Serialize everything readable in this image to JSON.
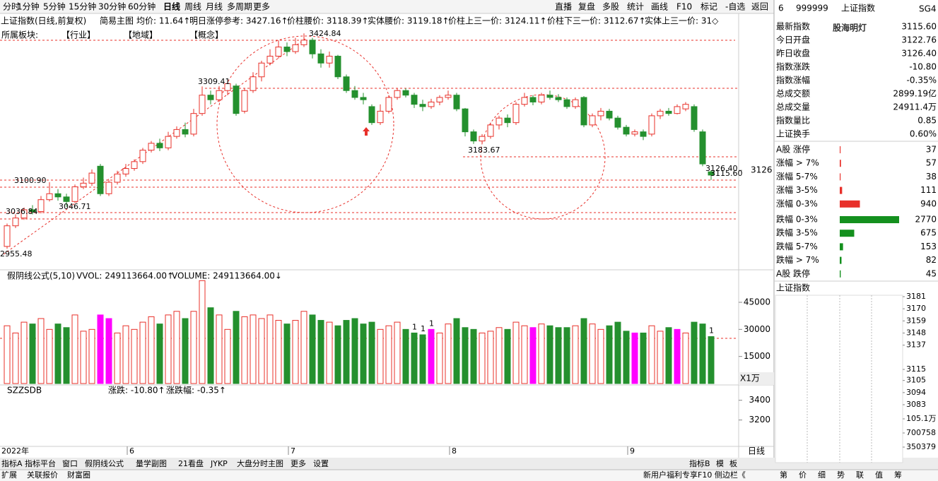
{
  "toolbar": {
    "periods": [
      "分时",
      "1分钟",
      "5分钟",
      "15分钟",
      "30分钟",
      "60分钟",
      "日线",
      "周线",
      "月线",
      "多周期",
      "更多"
    ],
    "active": 6,
    "tools": [
      "直播",
      "复盘",
      "多股",
      "统计",
      "画线",
      "F10",
      "标记",
      "-自选",
      "返回"
    ]
  },
  "info": {
    "title": "上证指数(日线,前复权)",
    "mode": "简易主图",
    "items": [
      "均价: 11.64↑",
      "明日涨停参考: 3427.16↑",
      "价柱腰价: 3118.39↑",
      "实体腰价: 3119.18↑",
      "价柱上三一价: 3124.11↑",
      "价柱下三一价: 3112.67↑",
      "实体上三一价: 31◇"
    ]
  },
  "sector": [
    "所属板块:",
    "【行业】",
    "【地域】",
    "【概念】"
  ],
  "chart_data": [
    {
      "type": "candlestick",
      "up_color": "#e8302a",
      "down_color": "#24902e",
      "ylim": [
        2909,
        3439
      ],
      "yticks": [
        3126
      ],
      "candles": [
        [
          2960,
          3005,
          3010,
          2955
        ],
        [
          3005,
          3022,
          3030,
          3000
        ],
        [
          3022,
          3040,
          3045,
          3018
        ],
        [
          3040,
          3036,
          3050,
          3030
        ],
        [
          3036,
          3062,
          3070,
          3032
        ],
        [
          3062,
          3075,
          3100,
          3058
        ],
        [
          3075,
          3068,
          3085,
          3060
        ],
        [
          3068,
          3058,
          3075,
          3046
        ],
        [
          3058,
          3090,
          3095,
          3055
        ],
        [
          3090,
          3098,
          3110,
          3085
        ],
        [
          3098,
          3120,
          3128,
          3092
        ],
        [
          3135,
          3075,
          3140,
          3070
        ],
        [
          3075,
          3100,
          3105,
          3070
        ],
        [
          3100,
          3118,
          3125,
          3095
        ],
        [
          3118,
          3130,
          3140,
          3112
        ],
        [
          3130,
          3145,
          3150,
          3125
        ],
        [
          3145,
          3170,
          3175,
          3140
        ],
        [
          3170,
          3185,
          3190,
          3165
        ],
        [
          3185,
          3175,
          3195,
          3168
        ],
        [
          3175,
          3200,
          3210,
          3170
        ],
        [
          3200,
          3215,
          3222,
          3195
        ],
        [
          3215,
          3205,
          3230,
          3198
        ],
        [
          3205,
          3250,
          3260,
          3200
        ],
        [
          3250,
          3290,
          3309,
          3245
        ],
        [
          3290,
          3280,
          3300,
          3270
        ],
        [
          3280,
          3300,
          3310,
          3275
        ],
        [
          3300,
          3315,
          3320,
          3290
        ],
        [
          3310,
          3250,
          3315,
          3245
        ],
        [
          3255,
          3300,
          3305,
          3250
        ],
        [
          3300,
          3330,
          3340,
          3295
        ],
        [
          3330,
          3360,
          3365,
          3320
        ],
        [
          3360,
          3375,
          3390,
          3355
        ],
        [
          3375,
          3395,
          3410,
          3370
        ],
        [
          3395,
          3385,
          3405,
          3375
        ],
        [
          3385,
          3400,
          3415,
          3380
        ],
        [
          3400,
          3410,
          3424.84,
          3395
        ],
        [
          3410,
          3380,
          3415,
          3370
        ],
        [
          3380,
          3360,
          3390,
          3350
        ],
        [
          3360,
          3375,
          3385,
          3350
        ],
        [
          3375,
          3330,
          3378,
          3325
        ],
        [
          3330,
          3300,
          3335,
          3295
        ],
        [
          3300,
          3285,
          3310,
          3280
        ],
        [
          3285,
          3280,
          3295,
          3270
        ],
        [
          3265,
          3230,
          3270,
          3225
        ],
        [
          3230,
          3255,
          3270,
          3225
        ],
        [
          3255,
          3285,
          3290,
          3250
        ],
        [
          3285,
          3300,
          3305,
          3280
        ],
        [
          3300,
          3290,
          3305,
          3285
        ],
        [
          3290,
          3270,
          3295,
          3262
        ],
        [
          3270,
          3265,
          3280,
          3255
        ],
        [
          3265,
          3275,
          3282,
          3260
        ],
        [
          3275,
          3285,
          3290,
          3268
        ],
        [
          3285,
          3290,
          3300,
          3280
        ],
        [
          3290,
          3260,
          3295,
          3255
        ],
        [
          3260,
          3210,
          3262,
          3200
        ],
        [
          3210,
          3190,
          3215,
          3183.67
        ],
        [
          3190,
          3200,
          3205,
          3185
        ],
        [
          3200,
          3225,
          3230,
          3195
        ],
        [
          3225,
          3240,
          3245,
          3215
        ],
        [
          3240,
          3230,
          3248,
          3220
        ],
        [
          3230,
          3270,
          3275,
          3225
        ],
        [
          3270,
          3285,
          3295,
          3265
        ],
        [
          3285,
          3275,
          3290,
          3268
        ],
        [
          3275,
          3290,
          3295,
          3270
        ],
        [
          3290,
          3285,
          3300,
          3280
        ],
        [
          3285,
          3280,
          3292,
          3275
        ],
        [
          3280,
          3265,
          3285,
          3260
        ],
        [
          3265,
          3280,
          3285,
          3260
        ],
        [
          3285,
          3225,
          3288,
          3220
        ],
        [
          3225,
          3245,
          3250,
          3220
        ],
        [
          3245,
          3255,
          3262,
          3235
        ],
        [
          3255,
          3240,
          3260,
          3235
        ],
        [
          3240,
          3220,
          3245,
          3215
        ],
        [
          3220,
          3205,
          3225,
          3200
        ],
        [
          3205,
          3210,
          3215,
          3200
        ],
        [
          3210,
          3200,
          3215,
          3192
        ],
        [
          3205,
          3245,
          3250,
          3200
        ],
        [
          3245,
          3255,
          3260,
          3238
        ],
        [
          3255,
          3250,
          3262,
          3245
        ],
        [
          3250,
          3265,
          3270,
          3248
        ],
        [
          3260,
          3270,
          3275,
          3255
        ],
        [
          3265,
          3215,
          3270,
          3210
        ],
        [
          3210,
          3140,
          3215,
          3135
        ],
        [
          3122.76,
          3115.6,
          3126.4,
          3105
        ]
      ],
      "annotations": [
        "3424.84",
        "3309.41",
        "3183.67",
        "3100.90",
        "3046.71",
        "3036.84",
        "2955.48",
        "3126.40",
        "3115.60"
      ],
      "x_labels": [
        "2022年",
        "6",
        "7",
        "8",
        "9"
      ],
      "period_label": "日线"
    },
    {
      "type": "bar",
      "title": "假阴线公式(5,10)",
      "vvol": "VVOL: 249113664.00↑",
      "volume": "VOLUME: 249113664.00↓",
      "unit": "X1万",
      "ylim": [
        0,
        63000
      ],
      "yticks": [
        15000,
        30000,
        45000
      ],
      "highlight": [
        11,
        12,
        50,
        62,
        74,
        79
      ],
      "highlight_color": "#ff00ff",
      "markers": [
        "1",
        "1",
        "1",
        "1"
      ],
      "values": [
        32000,
        28000,
        34000,
        33000,
        36000,
        30000,
        33000,
        31000,
        38000,
        29000,
        30000,
        38000,
        36000,
        28000,
        32000,
        30000,
        34000,
        37000,
        33000,
        38000,
        40000,
        36000,
        40000,
        57000,
        42000,
        38000,
        30000,
        40000,
        37000,
        38000,
        36000,
        38000,
        35000,
        33000,
        35000,
        40000,
        38000,
        35000,
        34000,
        32000,
        35000,
        36000,
        33000,
        34000,
        30000,
        32000,
        34000,
        30000,
        28000,
        27000,
        30000,
        28000,
        33000,
        36000,
        31000,
        30000,
        28000,
        29000,
        31000,
        30000,
        34000,
        32000,
        31000,
        33000,
        32000,
        31000,
        31000,
        32000,
        36000,
        33000,
        30000,
        32000,
        34000,
        29000,
        28000,
        28000,
        32000,
        29000,
        31000,
        30000,
        28000,
        34000,
        33000,
        26000
      ]
    }
  ],
  "indicator": {
    "title": "SZZSDB",
    "items": [
      "涨跌: -10.80↑",
      "涨跌幅: -0.35↑"
    ],
    "ylim": [
      2933,
      3555
    ],
    "yticks": [
      3400,
      3200
    ]
  },
  "quote": {
    "badge": "6",
    "code": "999999",
    "name": "上证指数",
    "tag": "SG4",
    "watermark": "股海明灯",
    "rows": [
      {
        "label": "最新指数",
        "value": "3115.60",
        "color": "#14901e"
      },
      {
        "label": "今日开盘",
        "value": "3122.76",
        "color": "#14901e"
      },
      {
        "label": "昨日收盘",
        "value": "3126.40",
        "color": "#000"
      },
      {
        "label": "指数涨跌",
        "value": "-10.80",
        "color": "#14901e"
      },
      {
        "label": "指数涨幅",
        "value": "-0.35%",
        "color": "#14901e"
      },
      {
        "label": "总成交额",
        "value": "2899.19亿",
        "color": "#000"
      },
      {
        "label": "总成交量",
        "value": "24911.4万",
        "color": "#000"
      },
      {
        "label": "指数量比",
        "value": "0.85",
        "color": "#000"
      },
      {
        "label": "上证换手",
        "value": "0.60%",
        "color": "#000"
      }
    ]
  },
  "breadth": {
    "max_bar": 2770,
    "rows": [
      {
        "label": "A股 涨停",
        "value": 37,
        "color": "#e8302a"
      },
      {
        "label": "涨幅 > 7%",
        "value": 57,
        "color": "#e8302a"
      },
      {
        "label": "涨幅 5-7%",
        "value": 38,
        "color": "#e8302a"
      },
      {
        "label": "涨幅 3-5%",
        "value": 111,
        "color": "#e8302a"
      },
      {
        "label": "涨幅 0-3%",
        "value": 940,
        "color": "#e8302a"
      },
      {
        "label": "跌幅 0-3%",
        "value": 2770,
        "color": "#14901e"
      },
      {
        "label": "跌幅 3-5%",
        "value": 675,
        "color": "#14901e"
      },
      {
        "label": "跌幅 5-7%",
        "value": 153,
        "color": "#14901e"
      },
      {
        "label": "跌幅 > 7%",
        "value": 82,
        "color": "#14901e"
      },
      {
        "label": "A股 跌停",
        "value": 45,
        "color": "#14901e"
      }
    ]
  },
  "intraday": {
    "title": "上证指数",
    "ylim": [
      3083,
      3181
    ],
    "yticks": [
      3181,
      3170,
      3159,
      3148,
      3137,
      3115,
      3105,
      3094,
      3083
    ],
    "vlim": [
      0,
      1051000
    ],
    "vticks": [
      {
        "value": 1051000,
        "label": "105.1万"
      },
      700758,
      350379
    ]
  },
  "tabs": [
    "指标A",
    "指标平台",
    "窗口",
    "假阴线公式",
    "量学副图",
    "21看盘",
    "JYKP",
    "大盘分时主图",
    "更多",
    "设置"
  ],
  "tabs_right": [
    "指标B",
    "模",
    "板"
  ],
  "status": {
    "left": [
      "扩展",
      "关联报价",
      "财富圈"
    ],
    "notice": "新用户福利专享F10 侧边栏《",
    "right": [
      "第",
      "价",
      "细",
      "势",
      "联",
      "值",
      "筹"
    ]
  }
}
